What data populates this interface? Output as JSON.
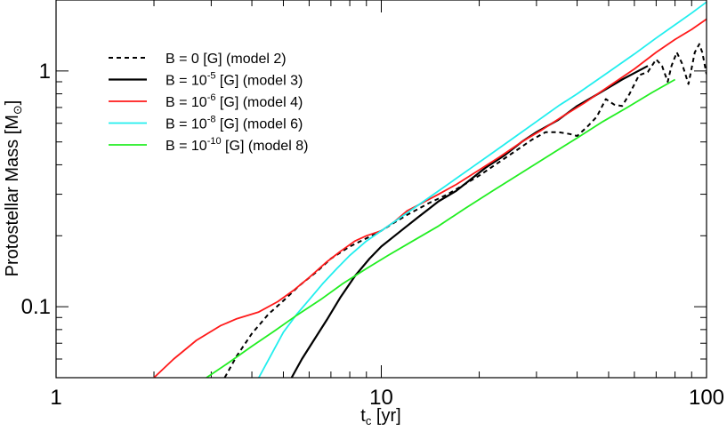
{
  "chart_data": {
    "type": "line",
    "xscale": "log",
    "yscale": "log",
    "xlim": [
      1,
      100
    ],
    "ylim": [
      0.05,
      2.0
    ],
    "xlabel_main": "t",
    "xlabel_sub": "c",
    "xlabel_unit": " [yr]",
    "ylabel_main": "Protostellar Mass [M",
    "ylabel_sub": "⊙",
    "ylabel_end": "]",
    "x_ticks": [
      {
        "value": 1,
        "label": "1"
      },
      {
        "value": 10,
        "label": "10"
      },
      {
        "value": 100,
        "label": "100"
      }
    ],
    "y_ticks": [
      {
        "value": 0.1,
        "label": "0.1"
      },
      {
        "value": 1,
        "label": "1"
      }
    ],
    "legend_position": "top-left",
    "series": [
      {
        "name": "B = 0 [G]  (model 2)",
        "legend_parts": {
          "pre": "B = 0 [G]  (model 2)",
          "sup": "",
          "post": ""
        },
        "color": "#000000",
        "dash": "5,4",
        "width": 2,
        "x": [
          3.3,
          3.6,
          4.0,
          4.5,
          5.0,
          5.6,
          6.3,
          7.0,
          8.0,
          9.0,
          10.0,
          11.0,
          12.0,
          14.0,
          16.0,
          18.0,
          20.0,
          23.0,
          26.0,
          29.0,
          32.0,
          35.0,
          38.0,
          40.0,
          43.0,
          46.0,
          49.0,
          52.0,
          55.0,
          58.0,
          62.0,
          66.0,
          70.0,
          73.0,
          76.0,
          78.0,
          81.0,
          84.0,
          88.0,
          92.0,
          95.0,
          97.0,
          100.0
        ],
        "y": [
          0.05,
          0.062,
          0.077,
          0.093,
          0.106,
          0.123,
          0.14,
          0.16,
          0.18,
          0.195,
          0.21,
          0.228,
          0.245,
          0.275,
          0.3,
          0.33,
          0.36,
          0.41,
          0.46,
          0.51,
          0.55,
          0.55,
          0.54,
          0.53,
          0.58,
          0.64,
          0.76,
          0.72,
          0.71,
          0.8,
          0.96,
          0.99,
          1.12,
          1.05,
          0.9,
          1.05,
          1.2,
          1.08,
          0.88,
          1.2,
          1.3,
          1.2,
          0.97
        ]
      },
      {
        "name": "B = 10-5 [G]  (model 3)",
        "legend_parts": {
          "pre": "B = 10",
          "sup": "-5",
          "post": " [G]  (model 3)"
        },
        "color": "#000000",
        "dash": "",
        "width": 2.2,
        "x": [
          5.3,
          5.7,
          6.2,
          6.8,
          7.5,
          8.3,
          9.2,
          10.0,
          11.0,
          12.0,
          13.0,
          14.0,
          15.0,
          17.0,
          19.0,
          21.0,
          24.0,
          27.0,
          30.0,
          35.0,
          40.0,
          45.0,
          50.0,
          55.0,
          60.0,
          66.0
        ],
        "y": [
          0.05,
          0.06,
          0.072,
          0.088,
          0.11,
          0.135,
          0.16,
          0.18,
          0.2,
          0.22,
          0.24,
          0.26,
          0.28,
          0.31,
          0.35,
          0.39,
          0.44,
          0.5,
          0.55,
          0.62,
          0.71,
          0.78,
          0.85,
          0.92,
          0.98,
          1.05
        ]
      },
      {
        "name": "B = 10-6 [G]  (model 4)",
        "legend_parts": {
          "pre": "B = 10",
          "sup": "-6",
          "post": " [G]  (model 4)"
        },
        "color": "#ff1a1a",
        "dash": "",
        "width": 1.8,
        "x": [
          2.0,
          2.3,
          2.7,
          3.2,
          3.6,
          4.2,
          4.8,
          5.4,
          6.0,
          6.8,
          7.5,
          8.3,
          9.0,
          10.0,
          11.0,
          12.0,
          13.0,
          15.0,
          17.0,
          20.0,
          23.0,
          27.0,
          31.0,
          36.0,
          42.0,
          50.0,
          60.0,
          70.0,
          80.0,
          90.0,
          100.0
        ],
        "y": [
          0.05,
          0.06,
          0.072,
          0.083,
          0.089,
          0.095,
          0.105,
          0.118,
          0.133,
          0.155,
          0.172,
          0.19,
          0.2,
          0.21,
          0.23,
          0.255,
          0.27,
          0.3,
          0.33,
          0.38,
          0.43,
          0.5,
          0.56,
          0.64,
          0.73,
          0.86,
          1.02,
          1.2,
          1.36,
          1.5,
          1.66
        ]
      },
      {
        "name": "B = 10-8 [G]  (model 6)",
        "legend_parts": {
          "pre": "B = 10",
          "sup": "-8",
          "post": " [G]  (model 6)"
        },
        "color": "#22eeee",
        "dash": "",
        "width": 1.8,
        "x": [
          4.2,
          4.6,
          5.0,
          5.5,
          6.0,
          6.6,
          7.3,
          8.0,
          9.0,
          10.0,
          11.0,
          12.0,
          14.0,
          16.0,
          19.0,
          22.0,
          26.0,
          30.0,
          35.0,
          40.0,
          50.0,
          60.0,
          70.0,
          80.0,
          90.0,
          100.0
        ],
        "y": [
          0.05,
          0.063,
          0.078,
          0.093,
          0.107,
          0.125,
          0.145,
          0.165,
          0.19,
          0.21,
          0.23,
          0.25,
          0.29,
          0.33,
          0.39,
          0.45,
          0.53,
          0.61,
          0.71,
          0.8,
          0.99,
          1.18,
          1.38,
          1.57,
          1.76,
          1.96
        ]
      },
      {
        "name": "B = 10-10 [G] (model 8)",
        "legend_parts": {
          "pre": "B = 10",
          "sup": "-10",
          "post": " [G] (model 8)"
        },
        "color": "#22ee22",
        "dash": "",
        "width": 1.8,
        "x": [
          2.9,
          3.4,
          4.0,
          4.7,
          5.5,
          6.5,
          7.6,
          9.0,
          10.5,
          12.5,
          15.0,
          18.0,
          22.0,
          27.0,
          33.0,
          40.0,
          48.0,
          57.0,
          68.0,
          80.0
        ],
        "y": [
          0.05,
          0.058,
          0.068,
          0.079,
          0.092,
          0.107,
          0.125,
          0.145,
          0.165,
          0.19,
          0.22,
          0.26,
          0.31,
          0.37,
          0.44,
          0.52,
          0.61,
          0.7,
          0.81,
          0.92
        ]
      }
    ]
  }
}
